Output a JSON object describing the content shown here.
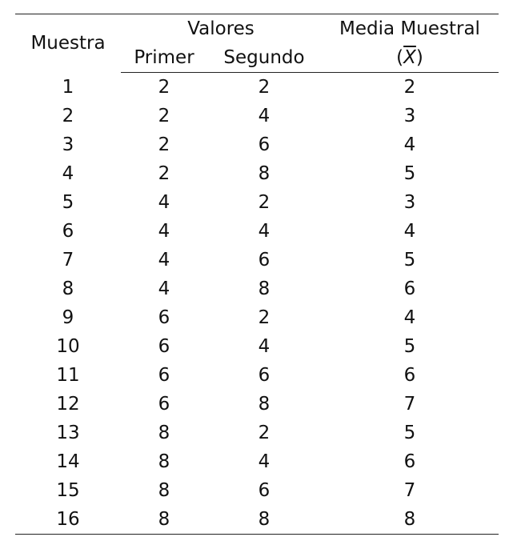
{
  "table": {
    "headers": {
      "muestra": "Muestra",
      "valores": "Valores",
      "primer": "Primer",
      "segundo": "Segundo",
      "media": "Media Muestral",
      "media_symbol_open": "(",
      "media_symbol": "X",
      "media_symbol_close": ")"
    },
    "rows": [
      {
        "muestra": "1",
        "primer": "2",
        "segundo": "2",
        "media": "2"
      },
      {
        "muestra": "2",
        "primer": "2",
        "segundo": "4",
        "media": "3"
      },
      {
        "muestra": "3",
        "primer": "2",
        "segundo": "6",
        "media": "4"
      },
      {
        "muestra": "4",
        "primer": "2",
        "segundo": "8",
        "media": "5"
      },
      {
        "muestra": "5",
        "primer": "4",
        "segundo": "2",
        "media": "3"
      },
      {
        "muestra": "6",
        "primer": "4",
        "segundo": "4",
        "media": "4"
      },
      {
        "muestra": "7",
        "primer": "4",
        "segundo": "6",
        "media": "5"
      },
      {
        "muestra": "8",
        "primer": "4",
        "segundo": "8",
        "media": "6"
      },
      {
        "muestra": "9",
        "primer": "6",
        "segundo": "2",
        "media": "4"
      },
      {
        "muestra": "10",
        "primer": "6",
        "segundo": "4",
        "media": "5"
      },
      {
        "muestra": "11",
        "primer": "6",
        "segundo": "6",
        "media": "6"
      },
      {
        "muestra": "12",
        "primer": "6",
        "segundo": "8",
        "media": "7"
      },
      {
        "muestra": "13",
        "primer": "8",
        "segundo": "2",
        "media": "5"
      },
      {
        "muestra": "14",
        "primer": "8",
        "segundo": "4",
        "media": "6"
      },
      {
        "muestra": "15",
        "primer": "8",
        "segundo": "6",
        "media": "7"
      },
      {
        "muestra": "16",
        "primer": "8",
        "segundo": "8",
        "media": "8"
      }
    ]
  }
}
